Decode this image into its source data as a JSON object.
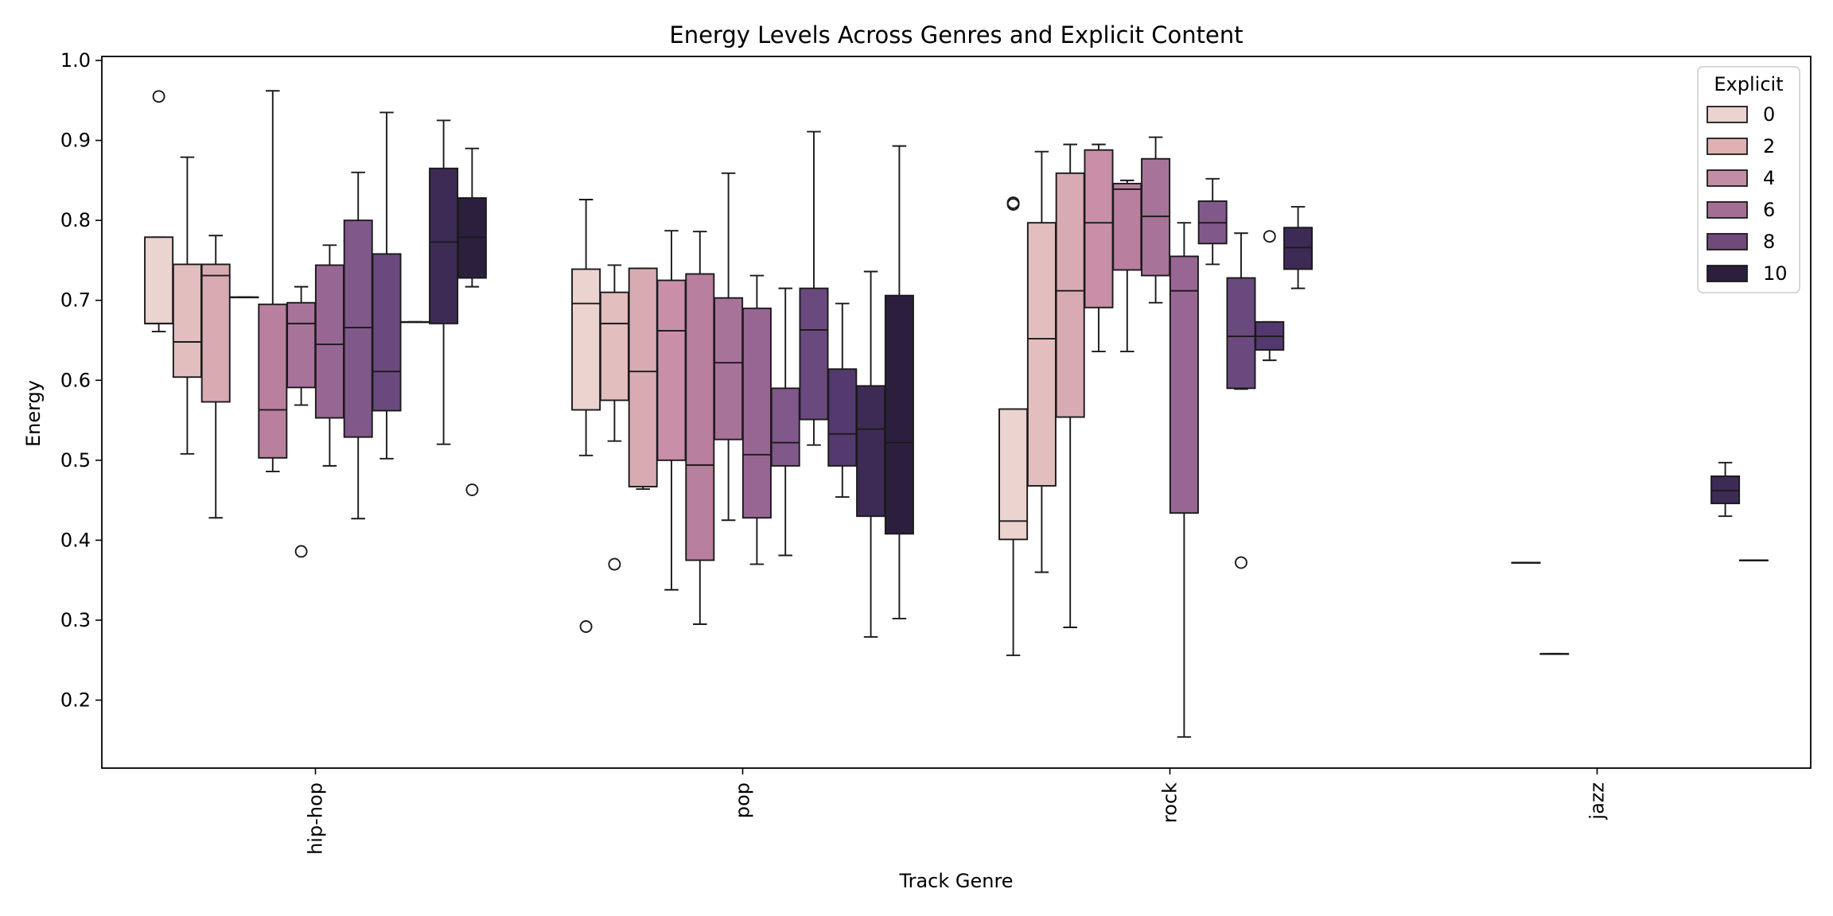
{
  "chart_data": {
    "type": "box",
    "title": "Energy Levels Across Genres and Explicit Content",
    "xlabel": "Track Genre",
    "ylabel": "Energy",
    "categories": [
      "hip-hop",
      "pop",
      "rock",
      "jazz"
    ],
    "ylim": [
      0.115,
      1.005
    ],
    "yticks": [
      0.2,
      0.3,
      0.4,
      0.5,
      0.6,
      0.7,
      0.8,
      0.9,
      1.0
    ],
    "tick_labels": [
      "0.2",
      "0.3",
      "0.4",
      "0.5",
      "0.6",
      "0.7",
      "0.8",
      "0.9",
      "1.0"
    ],
    "grid": false,
    "legend": {
      "title": "Explicit",
      "placement": "top-right",
      "entries": [
        {
          "label": "0",
          "color": "#ebd3d0"
        },
        {
          "label": "2",
          "color": "#dfb1b3"
        },
        {
          "label": "4",
          "color": "#c28ea5"
        },
        {
          "label": "6",
          "color": "#a26f92"
        },
        {
          "label": "8",
          "color": "#704a7b"
        },
        {
          "label": "10",
          "color": "#2d1e3e"
        }
      ]
    },
    "hue_levels": 12,
    "palette": [
      "#ebd3d0",
      "#e2bebf",
      "#d8abb3",
      "#c98fa8",
      "#b97f9e",
      "#a87399",
      "#986693",
      "#81588a",
      "#6a4a7e",
      "#53396d",
      "#3d2b56",
      "#2c1f3e"
    ],
    "series": [
      {
        "category": "hip-hop",
        "boxes": [
          {
            "hue": 0,
            "whislo": 0.661,
            "q1": 0.671,
            "med": 0.671,
            "q3": 0.779,
            "whishi": 0.779,
            "fliers": [
              0.955
            ]
          },
          {
            "hue": 1,
            "whislo": 0.508,
            "q1": 0.604,
            "med": 0.648,
            "q3": 0.745,
            "whishi": 0.879,
            "fliers": []
          },
          {
            "hue": 2,
            "whislo": 0.428,
            "q1": 0.573,
            "med": 0.731,
            "q3": 0.745,
            "whishi": 0.781,
            "fliers": []
          },
          {
            "hue": 3,
            "whislo": 0.704,
            "q1": 0.704,
            "med": 0.704,
            "q3": 0.704,
            "whishi": 0.704,
            "fliers": []
          },
          {
            "hue": 4,
            "whislo": 0.486,
            "q1": 0.503,
            "med": 0.563,
            "q3": 0.695,
            "whishi": 0.962,
            "fliers": []
          },
          {
            "hue": 5,
            "whislo": 0.569,
            "q1": 0.591,
            "med": 0.671,
            "q3": 0.697,
            "whishi": 0.717,
            "fliers": [
              0.386
            ]
          },
          {
            "hue": 6,
            "whislo": 0.493,
            "q1": 0.553,
            "med": 0.645,
            "q3": 0.744,
            "whishi": 0.769,
            "fliers": []
          },
          {
            "hue": 7,
            "whislo": 0.427,
            "q1": 0.529,
            "med": 0.666,
            "q3": 0.8,
            "whishi": 0.86,
            "fliers": []
          },
          {
            "hue": 8,
            "whislo": 0.502,
            "q1": 0.562,
            "med": 0.611,
            "q3": 0.758,
            "whishi": 0.935,
            "fliers": []
          },
          {
            "hue": 9,
            "whislo": 0.673,
            "q1": 0.673,
            "med": 0.673,
            "q3": 0.673,
            "whishi": 0.673,
            "fliers": []
          },
          {
            "hue": 10,
            "whislo": 0.52,
            "q1": 0.671,
            "med": 0.773,
            "q3": 0.865,
            "whishi": 0.925,
            "fliers": []
          },
          {
            "hue": 11,
            "whislo": 0.717,
            "q1": 0.728,
            "med": 0.779,
            "q3": 0.828,
            "whishi": 0.89,
            "fliers": [
              0.463
            ]
          }
        ]
      },
      {
        "category": "pop",
        "boxes": [
          {
            "hue": 0,
            "whislo": 0.506,
            "q1": 0.563,
            "med": 0.696,
            "q3": 0.739,
            "whishi": 0.826,
            "fliers": [
              0.292
            ]
          },
          {
            "hue": 1,
            "whislo": 0.524,
            "q1": 0.575,
            "med": 0.671,
            "q3": 0.71,
            "whishi": 0.744,
            "fliers": [
              0.37
            ]
          },
          {
            "hue": 2,
            "whislo": 0.464,
            "q1": 0.467,
            "med": 0.611,
            "q3": 0.74,
            "whishi": 0.74,
            "fliers": []
          },
          {
            "hue": 3,
            "whislo": 0.338,
            "q1": 0.5,
            "med": 0.662,
            "q3": 0.725,
            "whishi": 0.787,
            "fliers": []
          },
          {
            "hue": 4,
            "whislo": 0.295,
            "q1": 0.375,
            "med": 0.494,
            "q3": 0.733,
            "whishi": 0.786,
            "fliers": []
          },
          {
            "hue": 5,
            "whislo": 0.425,
            "q1": 0.526,
            "med": 0.622,
            "q3": 0.703,
            "whishi": 0.859,
            "fliers": []
          },
          {
            "hue": 6,
            "whislo": 0.37,
            "q1": 0.428,
            "med": 0.507,
            "q3": 0.69,
            "whishi": 0.731,
            "fliers": []
          },
          {
            "hue": 7,
            "whislo": 0.381,
            "q1": 0.493,
            "med": 0.522,
            "q3": 0.59,
            "whishi": 0.715,
            "fliers": []
          },
          {
            "hue": 8,
            "whislo": 0.519,
            "q1": 0.551,
            "med": 0.663,
            "q3": 0.715,
            "whishi": 0.911,
            "fliers": []
          },
          {
            "hue": 9,
            "whislo": 0.454,
            "q1": 0.493,
            "med": 0.533,
            "q3": 0.614,
            "whishi": 0.696,
            "fliers": []
          },
          {
            "hue": 10,
            "whislo": 0.279,
            "q1": 0.43,
            "med": 0.539,
            "q3": 0.593,
            "whishi": 0.736,
            "fliers": []
          },
          {
            "hue": 11,
            "whislo": 0.302,
            "q1": 0.408,
            "med": 0.522,
            "q3": 0.706,
            "whishi": 0.893,
            "fliers": []
          }
        ]
      },
      {
        "category": "rock",
        "boxes": [
          {
            "hue": 0,
            "whislo": 0.256,
            "q1": 0.401,
            "med": 0.424,
            "q3": 0.564,
            "whishi": 0.564,
            "fliers": [
              0.82,
              0.822
            ]
          },
          {
            "hue": 1,
            "whislo": 0.36,
            "q1": 0.468,
            "med": 0.652,
            "q3": 0.797,
            "whishi": 0.886,
            "fliers": []
          },
          {
            "hue": 2,
            "whislo": 0.291,
            "q1": 0.554,
            "med": 0.712,
            "q3": 0.859,
            "whishi": 0.895,
            "fliers": []
          },
          {
            "hue": 3,
            "whislo": 0.636,
            "q1": 0.691,
            "med": 0.797,
            "q3": 0.888,
            "whishi": 0.895,
            "fliers": []
          },
          {
            "hue": 4,
            "whislo": 0.636,
            "q1": 0.738,
            "med": 0.839,
            "q3": 0.846,
            "whishi": 0.85,
            "fliers": []
          },
          {
            "hue": 5,
            "whislo": 0.697,
            "q1": 0.731,
            "med": 0.805,
            "q3": 0.877,
            "whishi": 0.904,
            "fliers": []
          },
          {
            "hue": 6,
            "whislo": 0.154,
            "q1": 0.434,
            "med": 0.712,
            "q3": 0.755,
            "whishi": 0.797,
            "fliers": []
          },
          {
            "hue": 7,
            "whislo": 0.745,
            "q1": 0.771,
            "med": 0.797,
            "q3": 0.824,
            "whishi": 0.852,
            "fliers": []
          },
          {
            "hue": 8,
            "whislo": 0.589,
            "q1": 0.59,
            "med": 0.655,
            "q3": 0.728,
            "whishi": 0.784,
            "fliers": [
              0.372
            ]
          },
          {
            "hue": 9,
            "whislo": 0.625,
            "q1": 0.638,
            "med": 0.655,
            "q3": 0.673,
            "whishi": 0.673,
            "fliers": [
              0.78
            ]
          },
          {
            "hue": 10,
            "whislo": 0.715,
            "q1": 0.739,
            "med": 0.766,
            "q3": 0.791,
            "whishi": 0.817,
            "fliers": []
          }
        ]
      },
      {
        "category": "jazz",
        "boxes": [
          {
            "hue": 3,
            "whislo": 0.372,
            "q1": 0.372,
            "med": 0.372,
            "q3": 0.372,
            "whishi": 0.372,
            "fliers": []
          },
          {
            "hue": 4,
            "whislo": 0.258,
            "q1": 0.258,
            "med": 0.258,
            "q3": 0.258,
            "whishi": 0.258,
            "fliers": []
          },
          {
            "hue": 10,
            "whislo": 0.43,
            "q1": 0.446,
            "med": 0.462,
            "q3": 0.48,
            "whishi": 0.497,
            "fliers": []
          },
          {
            "hue": 11,
            "whislo": 0.375,
            "q1": 0.375,
            "med": 0.375,
            "q3": 0.375,
            "whishi": 0.375,
            "fliers": []
          }
        ]
      }
    ]
  }
}
